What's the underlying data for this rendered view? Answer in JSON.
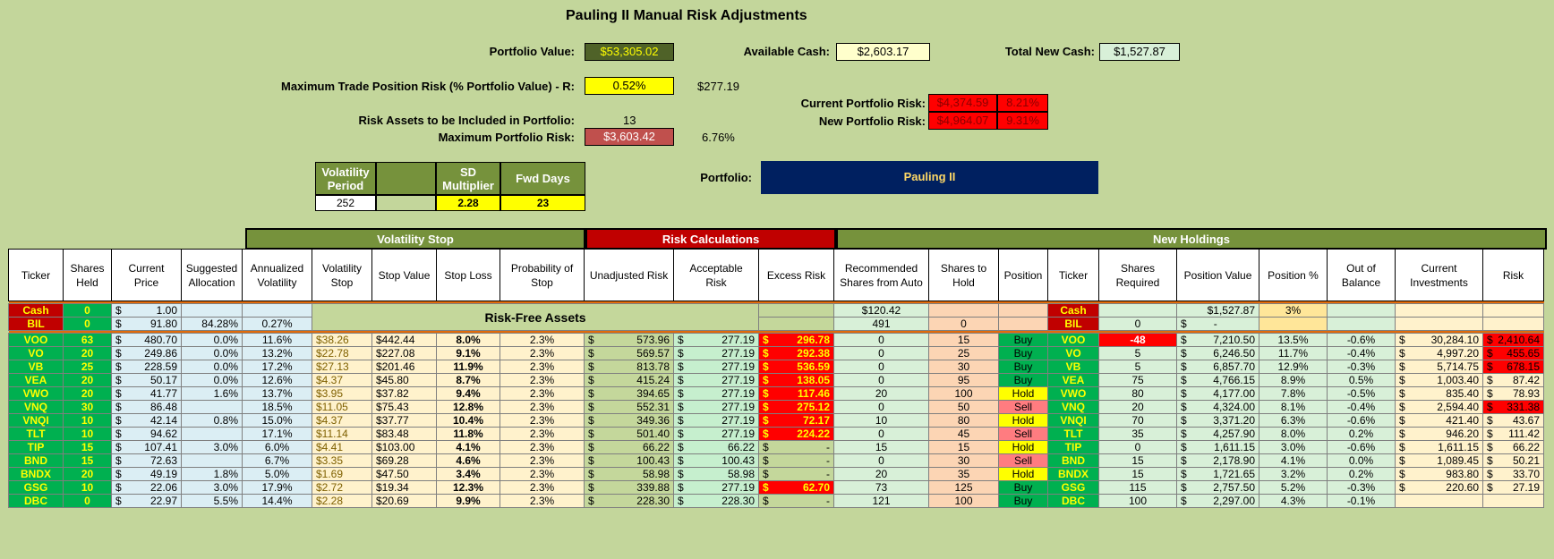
{
  "header": {
    "title": "Pauling II Manual Risk Adjustments",
    "portfolio_value_label": "Portfolio Value:",
    "portfolio_value": "$53,305.02",
    "available_cash_label": "Available Cash:",
    "available_cash": "$2,603.17",
    "total_new_cash_label": "Total New Cash:",
    "total_new_cash": "$1,527.87",
    "max_trade_label": "Maximum Trade Position Risk (% Portfolio Value) - R:",
    "max_trade_pct": "0.52%",
    "max_trade_value": "$277.19",
    "current_risk_label": "Current Portfolio Risk:",
    "current_risk_value": "$4,374.59",
    "current_risk_pct": "8.21%",
    "new_risk_label": "New Portfolio Risk:",
    "new_risk_value": "$4,964.07",
    "new_risk_pct": "9.31%",
    "risk_assets_label": "Risk Assets to be Included in Portfolio:",
    "risk_assets_value": "13",
    "max_portfolio_risk_label": "Maximum Portfolio Risk:",
    "max_portfolio_risk_value": "$3,603.42",
    "max_portfolio_risk_pct": "6.76%",
    "portfolio_label": "Portfolio:",
    "portfolio_name": "Pauling II"
  },
  "params": {
    "vol_period_label": "Volatility Period",
    "vol_period": "252",
    "sd_mult_label": "SD Multiplier",
    "sd_mult": "2.28",
    "fwd_days_label": "Fwd Days",
    "fwd_days": "23"
  },
  "groups": {
    "volatility_stop": "Volatility Stop",
    "risk_calcs": "Risk Calculations",
    "new_holdings": "New Holdings"
  },
  "columns": [
    "Ticker",
    "Shares Held",
    "Current Price",
    "Suggested Allocation",
    "Annualized Volatility",
    "Volatility Stop",
    "Stop Value",
    "Stop Loss",
    "Probability of Stop",
    "Unadjusted Risk",
    "Acceptable Risk",
    "Excess Risk",
    "Recommended Shares from Auto",
    "Shares to Hold",
    "Position",
    "Ticker",
    "Shares Required",
    "Position Value",
    "Position %",
    "Out of Balance",
    "Current Investments",
    "Risk"
  ],
  "risk_free_label": "Risk-Free Assets",
  "cash_row": {
    "ticker": "Cash",
    "held": "0",
    "price": "1.00",
    "rec": "$120.42",
    "ticker2": "Cash",
    "posval": "$1,527.87",
    "pospct": "3%"
  },
  "bil_row": {
    "ticker": "BIL",
    "held": "0",
    "price": "91.80",
    "alloc": "84.28%",
    "vol": "0.27%",
    "rec": "491",
    "hold": "0",
    "ticker2": "BIL",
    "req": "0",
    "posval": "-"
  },
  "dollar": "$",
  "rows": [
    {
      "t": "VOO",
      "held": "63",
      "price": "480.70",
      "alloc": "0.0%",
      "vol": "11.6%",
      "vstop": "$38.26",
      "sval": "$442.44",
      "sloss": "8.0%",
      "prob": "2.3%",
      "unadj": "573.96",
      "acc": "277.19",
      "excess": "296.78",
      "rec": "0",
      "hold": "15",
      "pos": "Buy",
      "req": "-48",
      "posval": "7,210.50",
      "pospct": "13.5%",
      "oob": "-0.6%",
      "cur": "30,284.10",
      "risk": "2,410.64"
    },
    {
      "t": "VO",
      "held": "20",
      "price": "249.86",
      "alloc": "0.0%",
      "vol": "13.2%",
      "vstop": "$22.78",
      "sval": "$227.08",
      "sloss": "9.1%",
      "prob": "2.3%",
      "unadj": "569.57",
      "acc": "277.19",
      "excess": "292.38",
      "rec": "0",
      "hold": "25",
      "pos": "Buy",
      "req": "5",
      "posval": "6,246.50",
      "pospct": "11.7%",
      "oob": "-0.4%",
      "cur": "4,997.20",
      "risk": "455.65"
    },
    {
      "t": "VB",
      "held": "25",
      "price": "228.59",
      "alloc": "0.0%",
      "vol": "17.2%",
      "vstop": "$27.13",
      "sval": "$201.46",
      "sloss": "11.9%",
      "prob": "2.3%",
      "unadj": "813.78",
      "acc": "277.19",
      "excess": "536.59",
      "rec": "0",
      "hold": "30",
      "pos": "Buy",
      "req": "5",
      "posval": "6,857.70",
      "pospct": "12.9%",
      "oob": "-0.3%",
      "cur": "5,714.75",
      "risk": "678.15"
    },
    {
      "t": "VEA",
      "held": "20",
      "price": "50.17",
      "alloc": "0.0%",
      "vol": "12.6%",
      "vstop": "$4.37",
      "sval": "$45.80",
      "sloss": "8.7%",
      "prob": "2.3%",
      "unadj": "415.24",
      "acc": "277.19",
      "excess": "138.05",
      "rec": "0",
      "hold": "95",
      "pos": "Buy",
      "req": "75",
      "posval": "4,766.15",
      "pospct": "8.9%",
      "oob": "0.5%",
      "cur": "1,003.40",
      "risk": "87.42"
    },
    {
      "t": "VWO",
      "held": "20",
      "price": "41.77",
      "alloc": "1.6%",
      "vol": "13.7%",
      "vstop": "$3.95",
      "sval": "$37.82",
      "sloss": "9.4%",
      "prob": "2.3%",
      "unadj": "394.65",
      "acc": "277.19",
      "excess": "117.46",
      "rec": "20",
      "hold": "100",
      "pos": "Hold",
      "req": "80",
      "posval": "4,177.00",
      "pospct": "7.8%",
      "oob": "-0.5%",
      "cur": "835.40",
      "risk": "78.93"
    },
    {
      "t": "VNQ",
      "held": "30",
      "price": "86.48",
      "alloc": "",
      "vol": "18.5%",
      "vstop": "$11.05",
      "sval": "$75.43",
      "sloss": "12.8%",
      "prob": "2.3%",
      "unadj": "552.31",
      "acc": "277.19",
      "excess": "275.12",
      "rec": "0",
      "hold": "50",
      "pos": "Sell",
      "req": "20",
      "posval": "4,324.00",
      "pospct": "8.1%",
      "oob": "-0.4%",
      "cur": "2,594.40",
      "risk": "331.38"
    },
    {
      "t": "VNQI",
      "held": "10",
      "price": "42.14",
      "alloc": "0.8%",
      "vol": "15.0%",
      "vstop": "$4.37",
      "sval": "$37.77",
      "sloss": "10.4%",
      "prob": "2.3%",
      "unadj": "349.36",
      "acc": "277.19",
      "excess": "72.17",
      "rec": "10",
      "hold": "80",
      "pos": "Hold",
      "req": "70",
      "posval": "3,371.20",
      "pospct": "6.3%",
      "oob": "-0.6%",
      "cur": "421.40",
      "risk": "43.67"
    },
    {
      "t": "TLT",
      "held": "10",
      "price": "94.62",
      "alloc": "",
      "vol": "17.1%",
      "vstop": "$11.14",
      "sval": "$83.48",
      "sloss": "11.8%",
      "prob": "2.3%",
      "unadj": "501.40",
      "acc": "277.19",
      "excess": "224.22",
      "rec": "0",
      "hold": "45",
      "pos": "Sell",
      "req": "35",
      "posval": "4,257.90",
      "pospct": "8.0%",
      "oob": "0.2%",
      "cur": "946.20",
      "risk": "111.42"
    },
    {
      "t": "TIP",
      "held": "15",
      "price": "107.41",
      "alloc": "3.0%",
      "vol": "6.0%",
      "vstop": "$4.41",
      "sval": "$103.00",
      "sloss": "4.1%",
      "prob": "2.3%",
      "unadj": "66.22",
      "acc": "66.22",
      "excess": "-",
      "rec": "15",
      "hold": "15",
      "pos": "Hold",
      "req": "0",
      "posval": "1,611.15",
      "pospct": "3.0%",
      "oob": "-0.6%",
      "cur": "1,611.15",
      "risk": "66.22"
    },
    {
      "t": "BND",
      "held": "15",
      "price": "72.63",
      "alloc": "",
      "vol": "6.7%",
      "vstop": "$3.35",
      "sval": "$69.28",
      "sloss": "4.6%",
      "prob": "2.3%",
      "unadj": "100.43",
      "acc": "100.43",
      "excess": "-",
      "rec": "0",
      "hold": "30",
      "pos": "Sell",
      "req": "15",
      "posval": "2,178.90",
      "pospct": "4.1%",
      "oob": "0.0%",
      "cur": "1,089.45",
      "risk": "50.21"
    },
    {
      "t": "BNDX",
      "held": "20",
      "price": "49.19",
      "alloc": "1.8%",
      "vol": "5.0%",
      "vstop": "$1.69",
      "sval": "$47.50",
      "sloss": "3.4%",
      "prob": "2.3%",
      "unadj": "58.98",
      "acc": "58.98",
      "excess": "-",
      "rec": "20",
      "hold": "35",
      "pos": "Hold",
      "req": "15",
      "posval": "1,721.65",
      "pospct": "3.2%",
      "oob": "0.2%",
      "cur": "983.80",
      "risk": "33.70"
    },
    {
      "t": "GSG",
      "held": "10",
      "price": "22.06",
      "alloc": "3.0%",
      "vol": "17.9%",
      "vstop": "$2.72",
      "sval": "$19.34",
      "sloss": "12.3%",
      "prob": "2.3%",
      "unadj": "339.88",
      "acc": "277.19",
      "excess": "62.70",
      "rec": "73",
      "hold": "125",
      "pos": "Buy",
      "req": "115",
      "posval": "2,757.50",
      "pospct": "5.2%",
      "oob": "-0.3%",
      "cur": "220.60",
      "risk": "27.19"
    },
    {
      "t": "DBC",
      "held": "0",
      "price": "22.97",
      "alloc": "5.5%",
      "vol": "14.4%",
      "vstop": "$2.28",
      "sval": "$20.69",
      "sloss": "9.9%",
      "prob": "2.3%",
      "unadj": "228.30",
      "acc": "228.30",
      "excess": "-",
      "rec": "121",
      "hold": "100",
      "pos": "Buy",
      "req": "100",
      "posval": "2,297.00",
      "pospct": "4.3%",
      "oob": "-0.1%",
      "cur": "",
      "risk": ""
    }
  ],
  "colors": {
    "bg": "#c3d69b",
    "green": "#00b050",
    "red": "#ff0000",
    "darkblue": "#002060",
    "olive": "#76923c"
  }
}
